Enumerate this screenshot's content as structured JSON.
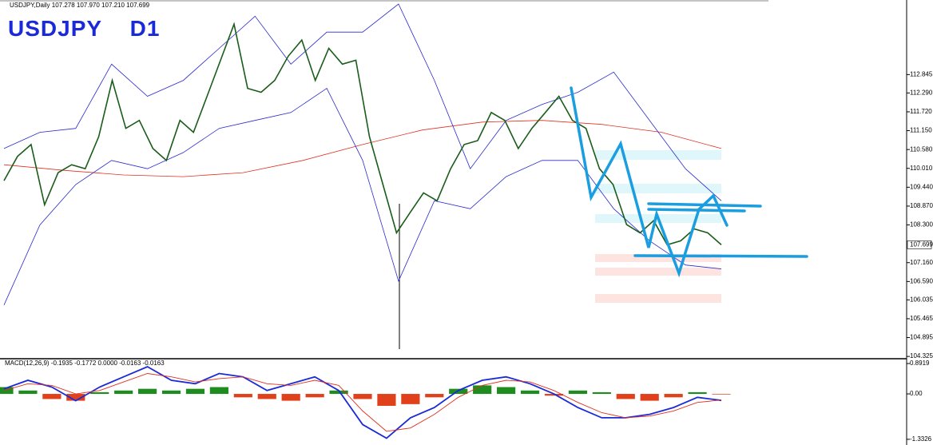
{
  "chart_data": [
    {
      "type": "line",
      "title": "USDJPY    D1",
      "subtitle": "USDJPY,Daily 107.278 107.970 107.210 107.699",
      "ylim": [
        104.28,
        115.1
      ],
      "yticks": [
        112.845,
        {
          "value": 112.29,
          "label": "112.290"
        },
        {
          "value": 111.72,
          "label": "111.720"
        },
        {
          "value": 111.15,
          "label": "111.150"
        },
        {
          "value": 110.58,
          "label": "110.580"
        },
        {
          "value": 110.01,
          "label": "110.010"
        },
        {
          "value": 109.44,
          "label": "109.440"
        },
        {
          "value": 108.87,
          "label": "108.870"
        },
        {
          "value": 108.3,
          "label": "108.300"
        },
        {
          "value": 107.16,
          "label": "107.160"
        },
        {
          "value": 106.59,
          "label": "106.590"
        },
        106.035,
        105.465,
        104.895,
        104.325
      ],
      "last_price": 107.699,
      "series": [
        {
          "color": "#e03020",
          "values": [
            110.12,
            109.95,
            109.81,
            109.76,
            109.88,
            110.25,
            110.73,
            111.17,
            111.41,
            111.46,
            111.34,
            111.1,
            110.61
          ]
        },
        {
          "color": "#2a2ad0",
          "values": [
            110.61,
            111.1,
            111.22,
            113.16,
            112.19,
            112.67,
            113.64,
            114.61,
            113.16,
            114.13,
            114.13,
            114.98,
            112.67,
            110.0,
            111.46,
            111.94,
            112.31,
            112.92,
            111.46,
            110.0,
            109.03
          ]
        },
        {
          "color": "#2a2ad0",
          "values": [
            105.88,
            108.3,
            109.52,
            110.25,
            110.0,
            110.49,
            111.22,
            111.46,
            111.7,
            112.43,
            110.25,
            106.6,
            109.03,
            108.79,
            109.76,
            110.25,
            110.25,
            108.79,
            107.82,
            107.09,
            106.97
          ]
        },
        {
          "color": "#1a5c1a",
          "values": [
            109.64,
            110.37,
            110.73,
            108.91,
            109.88,
            110.12,
            110.0,
            110.97,
            112.67,
            111.22,
            111.46,
            110.61,
            110.25,
            111.46,
            111.1,
            112.19,
            113.28,
            114.37,
            112.43,
            112.31,
            112.67,
            113.4,
            113.89,
            112.67,
            113.64,
            113.16,
            113.28,
            110.97,
            109.52,
            108.06,
            108.67,
            109.27,
            109.03,
            110.0,
            110.73,
            110.85,
            111.7,
            111.46,
            110.61,
            111.22,
            111.7,
            112.19,
            111.46,
            111.22,
            110.0,
            109.52,
            108.31,
            108.06,
            108.43,
            107.7,
            107.82,
            108.18,
            108.06,
            107.699
          ]
        }
      ]
    },
    {
      "type": "macd",
      "title": "MACD(12,26,9) -0.1935 -0.1772 0.0000 -0.0163 -0.0163",
      "ylim": [
        -1.5,
        1.01
      ],
      "yticks": [
        0.8919,
        {
          "value": 0,
          "label": "0.00"
        },
        -1.3326
      ],
      "series": [
        {
          "type": "bar",
          "up_color": "#1f8c1f",
          "down_color": "#e0401a",
          "values": [
            0.2,
            0.1,
            -0.15,
            -0.2,
            0.05,
            0.1,
            0.15,
            0.1,
            0.15,
            0.2,
            -0.1,
            -0.15,
            -0.2,
            -0.1,
            0.1,
            -0.15,
            -0.35,
            -0.3,
            -0.1,
            0.15,
            0.25,
            0.2,
            0.1,
            -0.05,
            0.1,
            0.05,
            -0.15,
            -0.2,
            -0.1,
            0.05,
            -0.0163
          ]
        },
        {
          "type": "line",
          "color": "#1a2ad8",
          "values": [
            0.15,
            0.4,
            0.2,
            -0.2,
            0.2,
            0.5,
            0.8,
            0.4,
            0.3,
            0.6,
            0.5,
            0.1,
            0.3,
            0.5,
            0.1,
            -0.9,
            -1.3,
            -0.7,
            -0.4,
            0.1,
            0.4,
            0.5,
            0.3,
            0.0,
            -0.4,
            -0.7,
            -0.7,
            -0.6,
            -0.4,
            -0.1,
            -0.19
          ]
        },
        {
          "type": "line",
          "color": "#e03020",
          "values": [
            0.1,
            0.3,
            0.25,
            0.0,
            0.1,
            0.35,
            0.6,
            0.5,
            0.35,
            0.45,
            0.5,
            0.3,
            0.25,
            0.4,
            0.25,
            -0.5,
            -1.1,
            -1.0,
            -0.6,
            -0.1,
            0.25,
            0.4,
            0.35,
            0.1,
            -0.25,
            -0.55,
            -0.7,
            -0.65,
            -0.5,
            -0.25,
            -0.18
          ]
        }
      ]
    }
  ]
}
